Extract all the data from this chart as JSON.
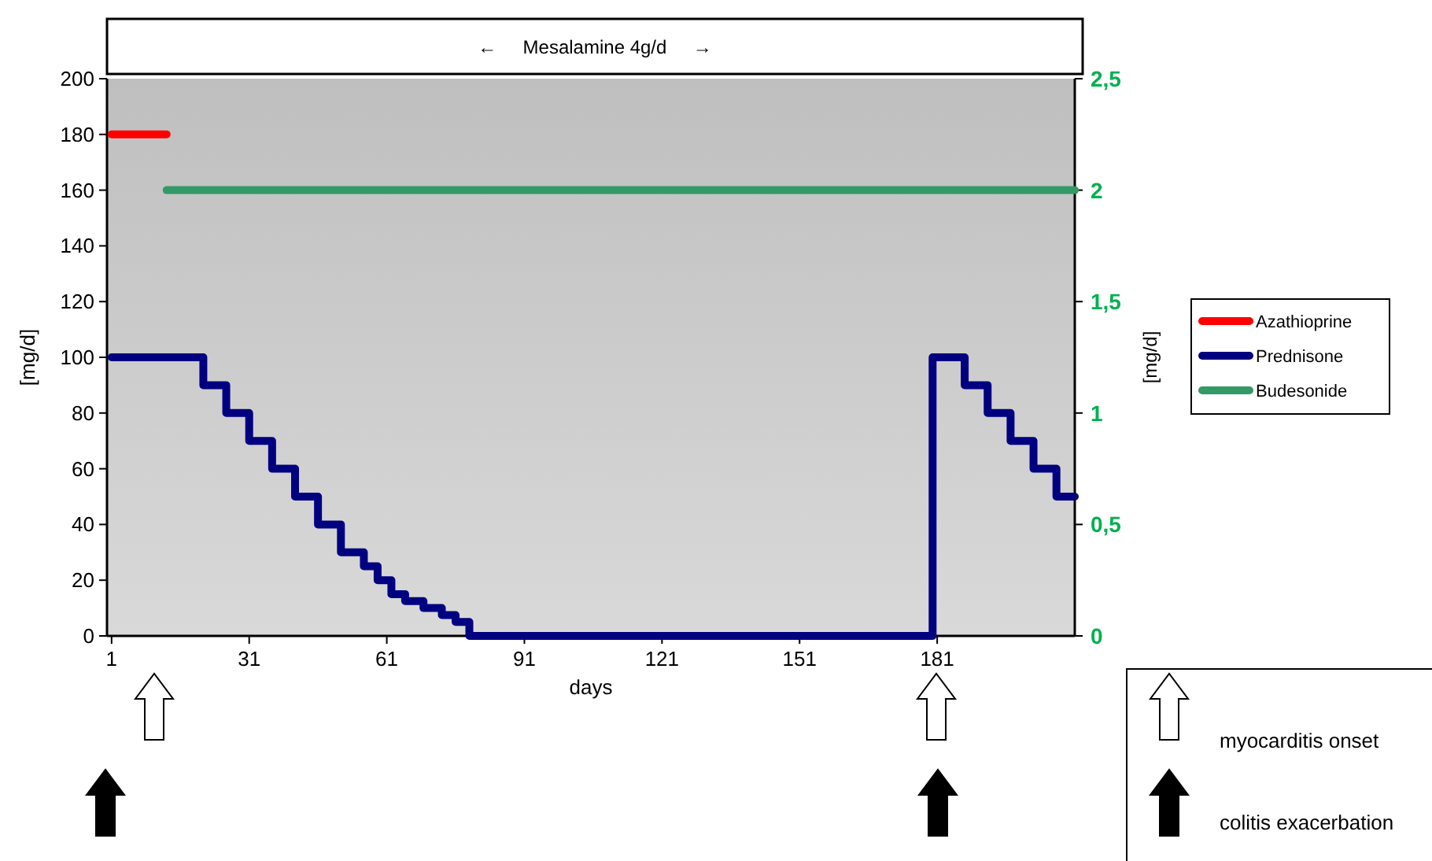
{
  "chart_data": {
    "type": "line",
    "title": "←     Mesalamine 4g/d     →",
    "xlabel": "days",
    "ylabel": "[mg/d]",
    "y2label": "[mg/d]",
    "annotations": [
      "myocarditis onset",
      "colitis exacerbation"
    ],
    "xlim": [
      0,
      211
    ],
    "xticks": [
      1,
      31,
      61,
      91,
      121,
      151,
      181
    ],
    "ylim": [
      0,
      200
    ],
    "yticks": [
      0,
      20,
      40,
      60,
      80,
      100,
      120,
      140,
      160,
      180,
      200
    ],
    "y2lim": [
      0,
      2.5
    ],
    "y2ticks": [
      0,
      {
        "value": 0.5,
        "label": "0,5"
      },
      1,
      {
        "value": 1.5,
        "label": "1,5"
      },
      2,
      {
        "value": 2.5,
        "label": "2,5"
      }
    ],
    "legend": "right",
    "grid": false,
    "marker": "none",
    "line_style": "solid",
    "series": [
      {
        "name": "Azathioprine",
        "color": "#ff0000",
        "x": [
          1,
          13
        ],
        "values": [
          180,
          180
        ]
      },
      {
        "name": "Prednisone",
        "color": "#000080",
        "type": "step",
        "x": [
          1,
          21,
          26,
          31,
          36,
          41,
          46,
          51,
          56,
          59,
          62,
          65,
          69,
          73,
          76,
          79,
          180,
          187,
          192,
          197,
          202,
          207,
          211
        ],
        "values": [
          100,
          90,
          80,
          70,
          60,
          50,
          40,
          30,
          25,
          20,
          15,
          12.5,
          10,
          7.5,
          5,
          0,
          100,
          90,
          80,
          70,
          60,
          50,
          50
        ]
      },
      {
        "name": "Budesonide",
        "color": "#339966",
        "axis": "y2",
        "x": [
          13,
          211
        ],
        "values": [
          2,
          2
        ]
      }
    ]
  }
}
